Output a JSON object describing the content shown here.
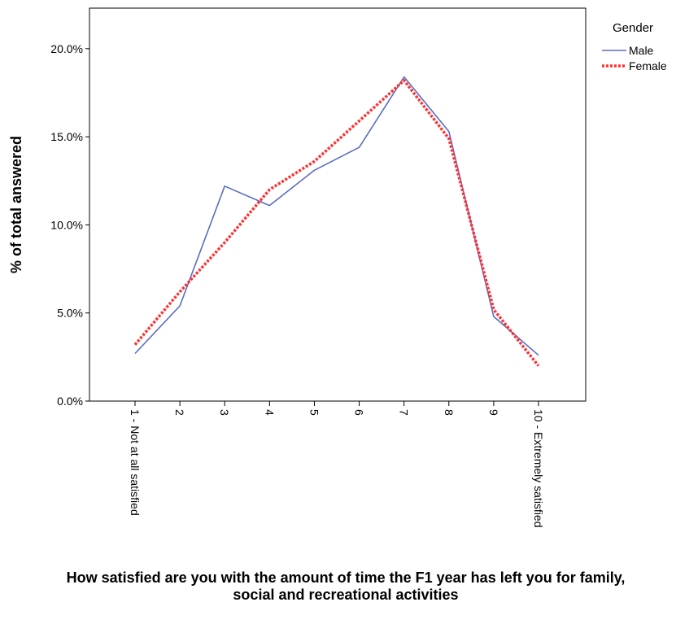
{
  "chart_data": {
    "type": "line",
    "categories": [
      "1 - Not at all satisfied",
      "2",
      "3",
      "4",
      "5",
      "6",
      "7",
      "8",
      "9",
      "10 - Extremely satisfied"
    ],
    "series": [
      {
        "name": "Male",
        "values": [
          2.7,
          5.4,
          12.2,
          11.1,
          13.1,
          14.4,
          18.4,
          15.3,
          4.8,
          2.6
        ],
        "color": "#5b6cc2",
        "style": "solid"
      },
      {
        "name": "Female",
        "values": [
          3.2,
          6.2,
          9.0,
          12.0,
          13.6,
          15.9,
          18.2,
          14.9,
          5.2,
          2.0
        ],
        "color": "#ff3030",
        "style": "dotted"
      }
    ],
    "ylabel": "% of total answered",
    "xlabel": "How satisfied are you with the amount of time the F1 year has left you for family, social and recreational activities",
    "ylim": [
      0,
      22.3
    ],
    "yticks": [
      0,
      5,
      10,
      15,
      20
    ],
    "yticklabels": [
      "0.0%",
      "5.0%",
      "10.0%",
      "15.0%",
      "20.0%"
    ],
    "legend": {
      "title": "Gender",
      "placement": "right-top"
    },
    "grid": false
  }
}
